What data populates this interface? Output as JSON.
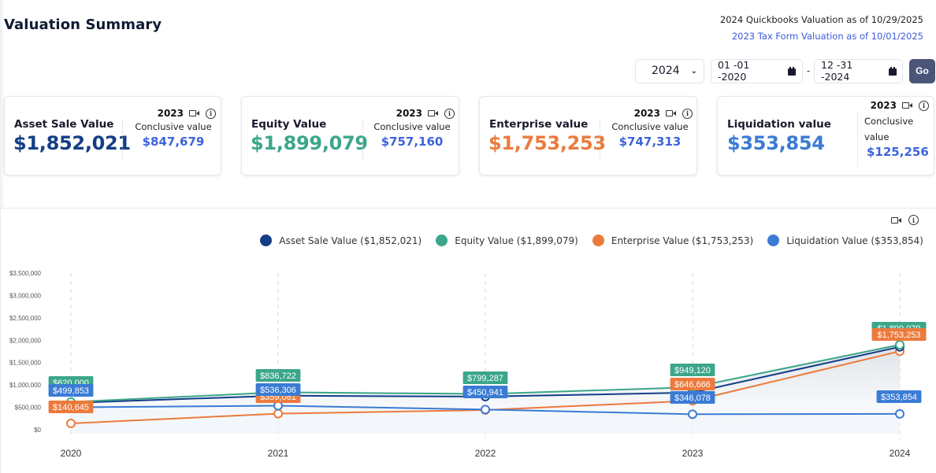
{
  "page": {
    "title": "Valuation Summary",
    "notes": {
      "quickbooks": "2024 Quickbooks Valuation as of 10/29/2025",
      "tax_form": "2023 Tax Form Valuation as of 10/01/2025"
    }
  },
  "controls": {
    "year_select": {
      "value": "2024",
      "icon": "chevron-down-icon"
    },
    "date_from": {
      "value": "01 -01 -2020",
      "icon": "calendar-icon"
    },
    "separator": "-",
    "date_to": {
      "value": "12 -31 -2024",
      "icon": "calendar-icon"
    },
    "go_label": "Go"
  },
  "cards": [
    {
      "name": "Asset Sale Value",
      "value": "$1,852,021",
      "color": "#133e87",
      "year": "2023",
      "conclusive_label": "Conclusive value",
      "conclusive_value": "$847,679"
    },
    {
      "name": "Equity Value",
      "value": "$1,899,079",
      "color": "#3ca68a",
      "year": "2023",
      "conclusive_label": "Conclusive value",
      "conclusive_value": "$757,160"
    },
    {
      "name": "Enterprise value",
      "value": "$1,753,253",
      "color": "#ec7a3c",
      "year": "2023",
      "conclusive_label": "Conclusive value",
      "conclusive_value": "$747,313"
    },
    {
      "name": "Liquidation value",
      "value": "$353,854",
      "color": "#3a7bd5",
      "year": "2023",
      "conclusive_label": "Conclusive value",
      "conclusive_value": "$125,256"
    }
  ],
  "chart_data": {
    "type": "line",
    "title": "",
    "xlabel": "",
    "ylabel": "",
    "x": [
      "2020",
      "2021",
      "2022",
      "2023",
      "2024"
    ],
    "ylim": [
      0,
      3500000
    ],
    "yticks": [
      0,
      500000,
      1000000,
      1500000,
      2000000,
      2500000,
      3000000,
      3500000
    ],
    "ytick_labels": [
      "$0",
      "$500,000",
      "$1,000,000",
      "$1,500,000",
      "$2,000,000",
      "$2,500,000",
      "$3,000,000",
      "$3,500,000"
    ],
    "grid": "vertical-dashed",
    "legend_position": "top-right",
    "series": [
      {
        "name": "Asset Sale Value",
        "legend": "Asset Sale Value ($1,852,021)",
        "color": "#133e87",
        "values": [
          600000,
          760000,
          740000,
          830000,
          1852021
        ],
        "labels": [
          null,
          null,
          null,
          null,
          null
        ]
      },
      {
        "name": "Equity Value",
        "legend": "Equity Value ($1,899,079)",
        "color": "#3ca68a",
        "values": [
          620000,
          836722,
          799287,
          949120,
          1899079
        ],
        "labels": [
          "$620,000",
          "$836,722",
          "$799,287",
          "$949,120",
          "$1,899,079"
        ]
      },
      {
        "name": "Enterprise Value",
        "legend": "Enterprise Value ($1,753,253)",
        "color": "#ec7a3c",
        "values": [
          140645,
          359081,
          440000,
          646666,
          1753253
        ],
        "labels": [
          "$140,645",
          "$359,081",
          null,
          "$646,666",
          "$1,753,253"
        ]
      },
      {
        "name": "Liquidation Value",
        "legend": "Liquidation Value ($353,854)",
        "color": "#3a7bd5",
        "values": [
          499853,
          536306,
          450941,
          346078,
          353854
        ],
        "labels": [
          "$499,853",
          "$536,306",
          "$450,941",
          "$346,078",
          "$353,854"
        ]
      }
    ]
  }
}
